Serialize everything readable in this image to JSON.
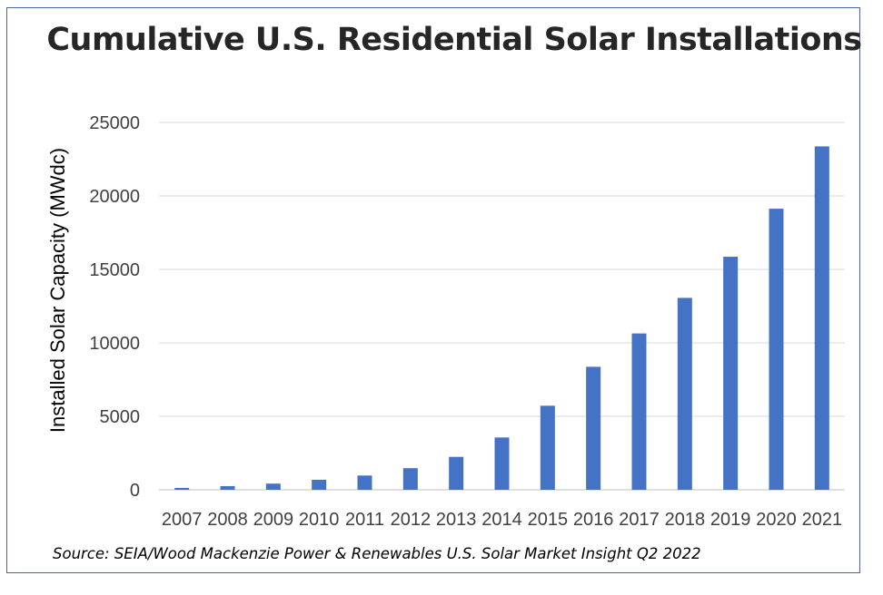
{
  "chart_data": {
    "type": "bar",
    "title": "Cumulative U.S. Residential Solar Installations",
    "xlabel": "",
    "ylabel": "Installed Solar Capacity (MWdc)",
    "categories": [
      "2007",
      "2008",
      "2009",
      "2010",
      "2011",
      "2012",
      "2013",
      "2014",
      "2015",
      "2016",
      "2017",
      "2018",
      "2019",
      "2020",
      "2021"
    ],
    "values": [
      130,
      250,
      420,
      680,
      970,
      1470,
      2240,
      3560,
      5720,
      8370,
      10640,
      13060,
      15860,
      19130,
      23370
    ],
    "ylim": [
      0,
      25000
    ],
    "yticks": [
      0,
      5000,
      10000,
      15000,
      20000,
      25000
    ],
    "grid": true,
    "legend": "none",
    "bar_color": "#4472c4",
    "source": "Source: SEIA/Wood Mackenzie Power & Renewables U.S. Solar Market Insight Q2 2022"
  }
}
